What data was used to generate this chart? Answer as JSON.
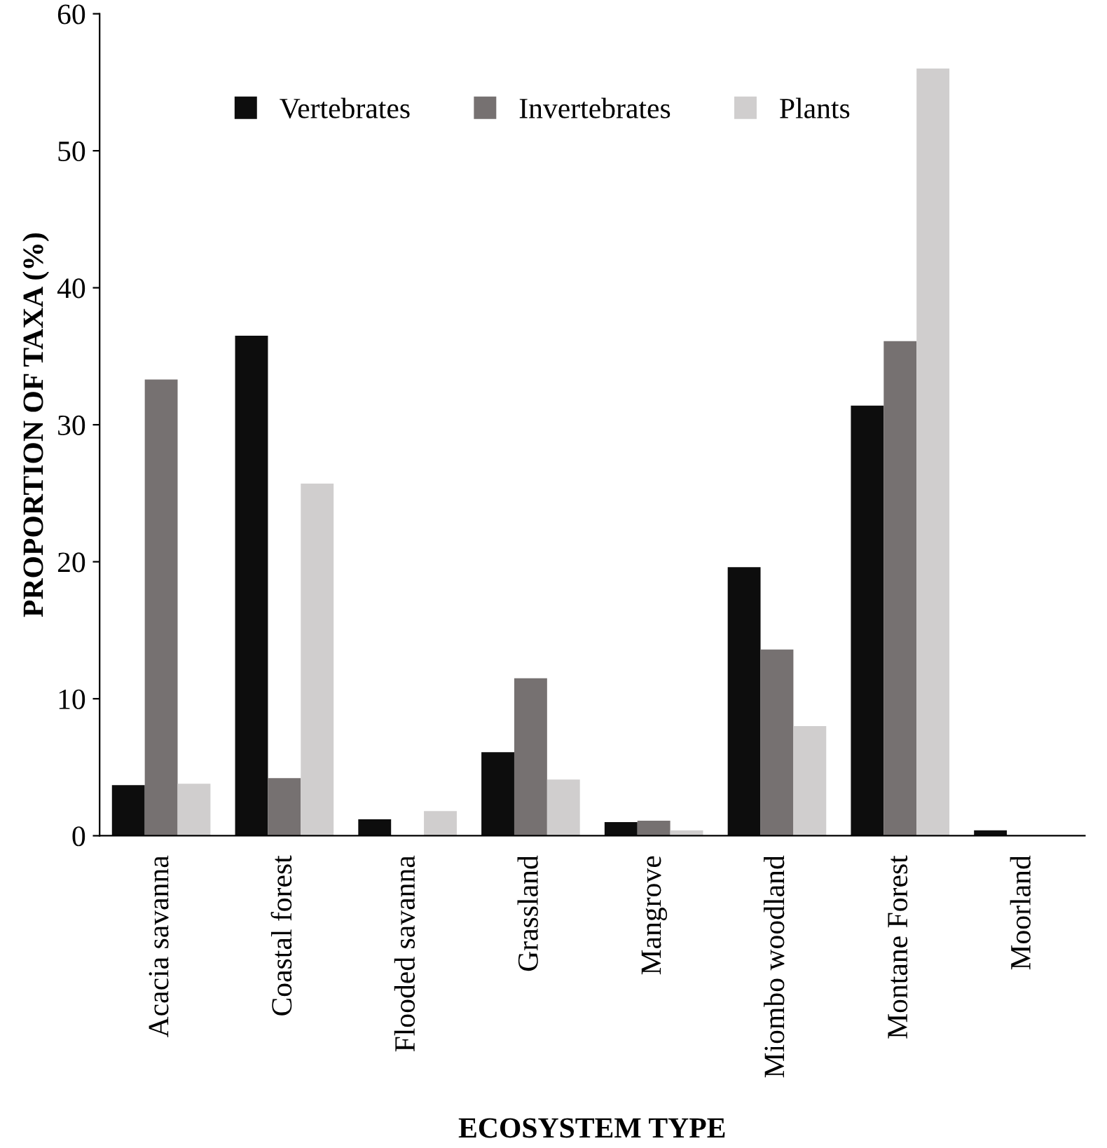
{
  "chart_data": {
    "type": "bar",
    "xlabel": "ECOSYSTEM TYPE",
    "ylabel": "PROPORTION OF TAXA (%)",
    "categories": [
      "Acacia savanna",
      "Coastal forest",
      "Flooded savanna",
      "Grassland",
      "Mangrove",
      "Miombo woodland",
      "Montane Forest",
      "Moorland"
    ],
    "series": [
      {
        "name": "Vertebrates",
        "color": "#0d0d0d",
        "values": [
          3.7,
          36.5,
          1.2,
          6.1,
          1.0,
          19.6,
          31.4,
          0.4
        ]
      },
      {
        "name": "Invertebrates",
        "color": "#767171",
        "values": [
          33.3,
          4.2,
          0,
          11.5,
          1.1,
          13.6,
          36.1,
          0
        ]
      },
      {
        "name": "Plants",
        "color": "#d0cece",
        "values": [
          3.8,
          25.7,
          1.8,
          4.1,
          0.4,
          8.0,
          56.0,
          0
        ]
      }
    ],
    "ylim": [
      0,
      60
    ],
    "yticks": [
      0,
      10,
      20,
      30,
      40,
      50,
      60
    ],
    "grid": false,
    "legend": "top"
  }
}
